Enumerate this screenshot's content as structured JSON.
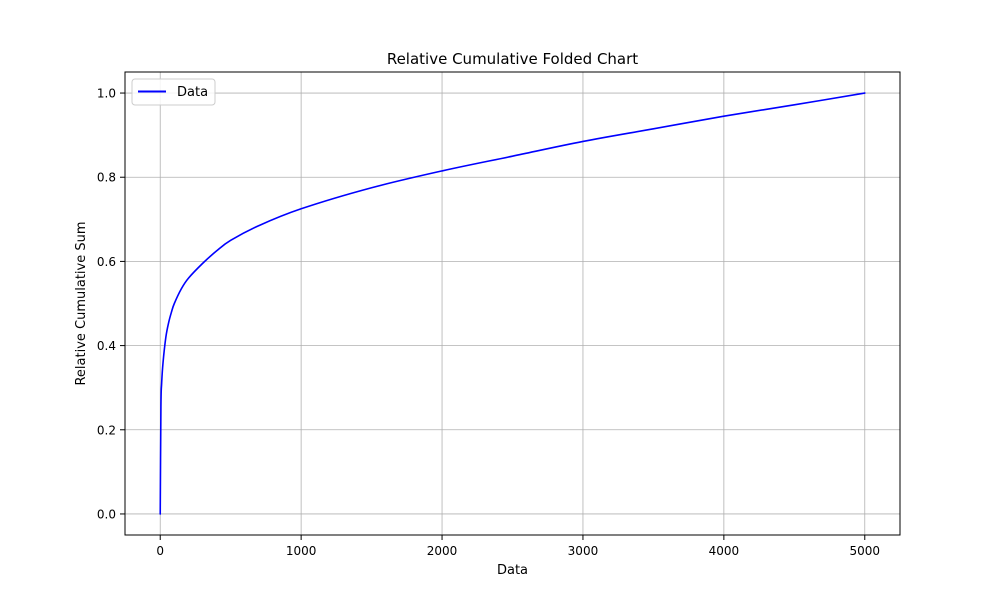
{
  "chart_data": {
    "type": "line",
    "title": "Relative Cumulative Folded Chart",
    "xlabel": "Data",
    "ylabel": "Relative Cumulative Sum",
    "xlim": [
      -250,
      5250
    ],
    "ylim": [
      -0.05,
      1.05
    ],
    "x_ticks": [
      0,
      1000,
      2000,
      3000,
      4000,
      5000
    ],
    "y_ticks": [
      0.0,
      0.2,
      0.4,
      0.6,
      0.8,
      1.0
    ],
    "x_tick_labels": [
      "0",
      "1000",
      "2000",
      "3000",
      "4000",
      "5000"
    ],
    "y_tick_labels": [
      "0.0",
      "0.2",
      "0.4",
      "0.6",
      "0.8",
      "1.0"
    ],
    "grid": true,
    "legend": {
      "position": "upper-left"
    },
    "series": [
      {
        "name": "Data",
        "color": "#0000ff",
        "x": [
          0,
          5,
          10,
          20,
          40,
          60,
          80,
          100,
          150,
          200,
          300,
          400,
          500,
          700,
          1000,
          1500,
          2000,
          2500,
          3000,
          3500,
          4000,
          4500,
          5000
        ],
        "y": [
          0.0,
          0.255,
          0.31,
          0.36,
          0.42,
          0.455,
          0.48,
          0.5,
          0.535,
          0.56,
          0.595,
          0.625,
          0.65,
          0.685,
          0.725,
          0.775,
          0.815,
          0.85,
          0.885,
          0.915,
          0.945,
          0.972,
          1.0
        ]
      }
    ]
  }
}
